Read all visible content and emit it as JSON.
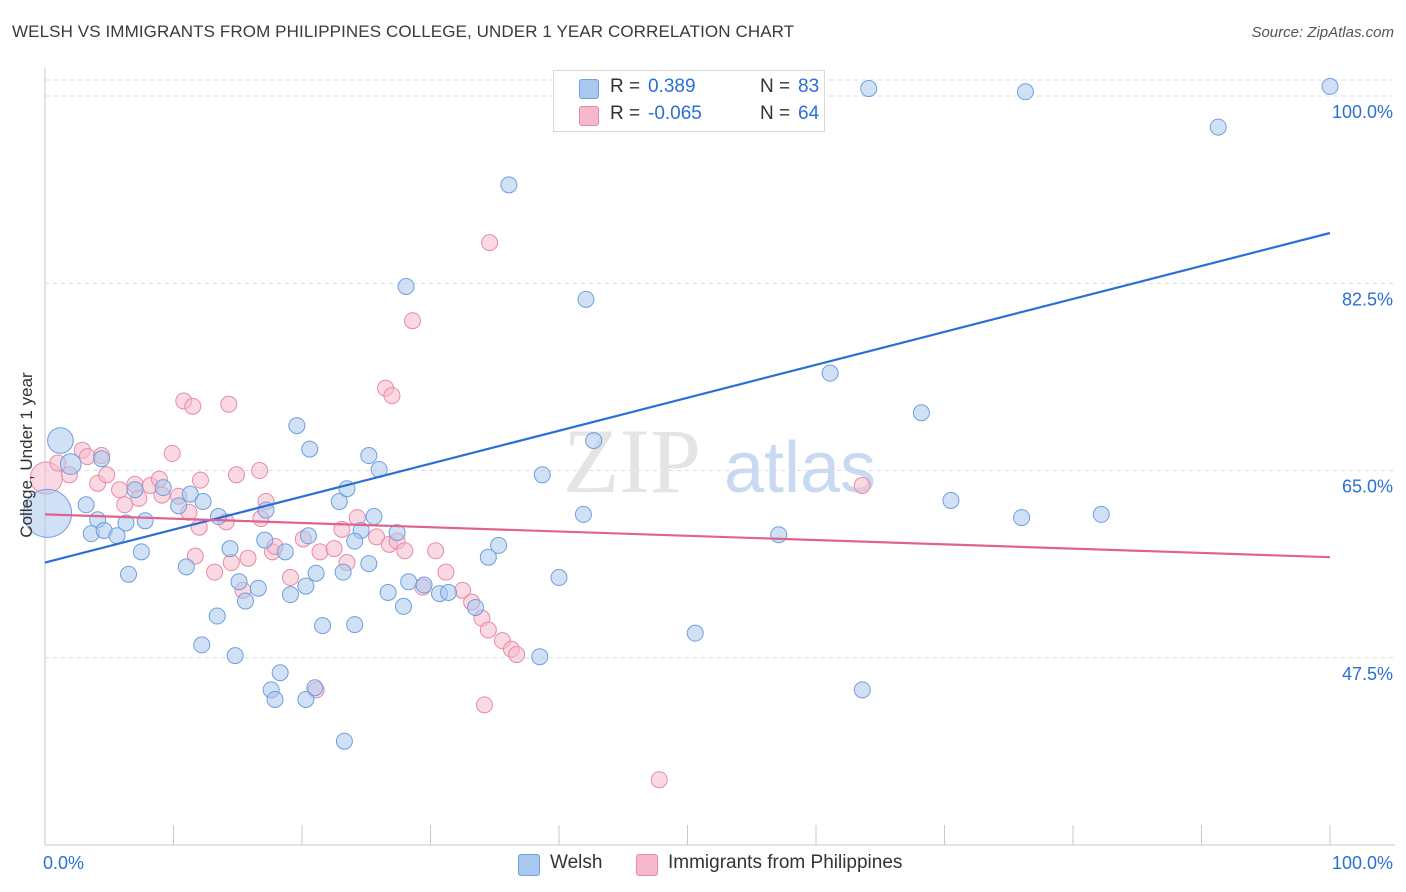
{
  "title": "WELSH VS IMMIGRANTS FROM PHILIPPINES COLLEGE, UNDER 1 YEAR CORRELATION CHART",
  "source": "Source: ZipAtlas.com",
  "watermark": {
    "zip": "ZIP",
    "atlas": "atlas"
  },
  "legend": {
    "rows": [
      {
        "r_label": "R =",
        "r_value": "0.389",
        "n_label": "N =",
        "n_value": "83",
        "color": "#a9c8ef"
      },
      {
        "r_label": "R =",
        "r_value": "-0.065",
        "n_label": "N =",
        "n_value": "64",
        "color": "#f5b9cb"
      }
    ]
  },
  "series_labels": {
    "welsh": "Welsh",
    "philippines": "Immigrants from Philippines"
  },
  "colors": {
    "welsh_fill": "#a9c8ef",
    "welsh_stroke": "#6f9fdc",
    "welsh_line": "#2a6fd6",
    "phil_fill": "#f5b9cb",
    "phil_stroke": "#e98aa7",
    "phil_line": "#e0628f",
    "grid": "#dcdcdc",
    "tick_text": "#2a6fd6"
  },
  "chart_data": {
    "type": "scatter",
    "title": "WELSH VS IMMIGRANTS FROM PHILIPPINES COLLEGE, UNDER 1 YEAR CORRELATION CHART",
    "xlabel": "",
    "ylabel": "College, Under 1 year",
    "xlim": [
      0,
      100
    ],
    "ylim": [
      30,
      101.5
    ],
    "x_tick_labels": [
      "0.0%",
      "100.0%"
    ],
    "y_ticks": [
      47.5,
      65.0,
      82.5,
      100.0
    ],
    "y_tick_labels": [
      "47.5%",
      "65.0%",
      "82.5%",
      "100.0%"
    ],
    "series": [
      {
        "name": "Welsh",
        "r": 0.389,
        "n": 83,
        "trend": {
          "x0": 0,
          "y0": 56.4,
          "x1": 100,
          "y1": 87.2
        },
        "points": [
          [
            0.2,
            61.0,
            3
          ],
          [
            1.2,
            67.8,
            1.6
          ],
          [
            2.0,
            65.6,
            1.3
          ],
          [
            4.4,
            66.1,
            1
          ],
          [
            3.2,
            61.8,
            1
          ],
          [
            4.1,
            60.4,
            1
          ],
          [
            3.6,
            59.1,
            1
          ],
          [
            4.6,
            59.4,
            1
          ],
          [
            5.6,
            58.9,
            1
          ],
          [
            7.0,
            63.2,
            1
          ],
          [
            9.2,
            63.4,
            1
          ],
          [
            6.3,
            60.1,
            1
          ],
          [
            7.8,
            60.3,
            1
          ],
          [
            10.4,
            61.7,
            1
          ],
          [
            11.3,
            62.8,
            1
          ],
          [
            12.3,
            62.1,
            1
          ],
          [
            7.5,
            57.4,
            1
          ],
          [
            11.0,
            56.0,
            1
          ],
          [
            6.5,
            55.3,
            1
          ],
          [
            13.5,
            60.7,
            1
          ],
          [
            14.4,
            57.7,
            1
          ],
          [
            15.1,
            54.6,
            1
          ],
          [
            17.1,
            58.5,
            1
          ],
          [
            18.7,
            57.4,
            1
          ],
          [
            15.6,
            52.8,
            1
          ],
          [
            13.4,
            51.4,
            1
          ],
          [
            12.2,
            48.7,
            1
          ],
          [
            14.8,
            47.7,
            1
          ],
          [
            16.6,
            54.0,
            1
          ],
          [
            19.1,
            53.4,
            1
          ],
          [
            20.3,
            54.2,
            1
          ],
          [
            21.1,
            55.4,
            1
          ],
          [
            23.2,
            55.5,
            1
          ],
          [
            20.5,
            58.9,
            1
          ],
          [
            17.2,
            61.3,
            1
          ],
          [
            20.6,
            67.0,
            1
          ],
          [
            19.6,
            69.2,
            1
          ],
          [
            22.9,
            62.1,
            1
          ],
          [
            23.5,
            63.3,
            1
          ],
          [
            24.6,
            59.4,
            1
          ],
          [
            25.6,
            60.7,
            1
          ],
          [
            26.0,
            65.1,
            1
          ],
          [
            25.2,
            66.4,
            1
          ],
          [
            24.1,
            58.4,
            1
          ],
          [
            25.2,
            56.3,
            1
          ],
          [
            27.4,
            59.2,
            1
          ],
          [
            28.3,
            54.6,
            1
          ],
          [
            30.7,
            53.5,
            1
          ],
          [
            31.4,
            53.6,
            1
          ],
          [
            29.5,
            54.3,
            1
          ],
          [
            26.7,
            53.6,
            1
          ],
          [
            27.9,
            52.3,
            1
          ],
          [
            24.1,
            50.6,
            1
          ],
          [
            21.6,
            50.5,
            1
          ],
          [
            18.3,
            46.1,
            1
          ],
          [
            17.6,
            44.5,
            1
          ],
          [
            17.9,
            43.6,
            1
          ],
          [
            20.3,
            43.6,
            1
          ],
          [
            21.0,
            44.7,
            1
          ],
          [
            23.3,
            39.7,
            1
          ],
          [
            33.5,
            52.2,
            1
          ],
          [
            34.5,
            56.9,
            1
          ],
          [
            35.3,
            58.0,
            1
          ],
          [
            38.7,
            64.6,
            1
          ],
          [
            40.0,
            55.0,
            1
          ],
          [
            42.7,
            67.8,
            1
          ],
          [
            41.9,
            60.9,
            1
          ],
          [
            38.5,
            47.6,
            1
          ],
          [
            50.6,
            49.8,
            1
          ],
          [
            61.1,
            74.1,
            1
          ],
          [
            57.1,
            59.0,
            1
          ],
          [
            63.6,
            44.5,
            1
          ],
          [
            68.2,
            70.4,
            1
          ],
          [
            70.5,
            62.2,
            1
          ],
          [
            76.0,
            60.6,
            1
          ],
          [
            82.2,
            60.9,
            1
          ],
          [
            91.3,
            97.1,
            1
          ],
          [
            76.3,
            100.4,
            1
          ],
          [
            64.1,
            100.7,
            1
          ],
          [
            100.0,
            100.9,
            1
          ],
          [
            36.1,
            91.7,
            1
          ],
          [
            42.1,
            81.0,
            1
          ],
          [
            28.1,
            82.2,
            1
          ]
        ]
      },
      {
        "name": "Immigrants from Philippines",
        "r": -0.065,
        "n": 64,
        "trend": {
          "x0": 0,
          "y0": 60.9,
          "x1": 100,
          "y1": 56.9
        },
        "points": [
          [
            0.1,
            64.3,
            2
          ],
          [
            1.0,
            65.7,
            1
          ],
          [
            1.9,
            64.6,
            1
          ],
          [
            2.9,
            66.9,
            1
          ],
          [
            3.3,
            66.3,
            1
          ],
          [
            4.4,
            66.4,
            1
          ],
          [
            4.1,
            63.8,
            1
          ],
          [
            4.8,
            64.6,
            1
          ],
          [
            5.8,
            63.2,
            1
          ],
          [
            6.2,
            61.8,
            1
          ],
          [
            7.0,
            63.7,
            1
          ],
          [
            7.3,
            62.4,
            1
          ],
          [
            8.2,
            63.6,
            1
          ],
          [
            8.9,
            64.2,
            1
          ],
          [
            9.1,
            62.7,
            1
          ],
          [
            10.4,
            62.6,
            1
          ],
          [
            11.2,
            61.1,
            1
          ],
          [
            11.7,
            57.0,
            1
          ],
          [
            12.0,
            59.7,
            1
          ],
          [
            13.2,
            55.5,
            1
          ],
          [
            14.1,
            60.2,
            1
          ],
          [
            14.5,
            56.4,
            1
          ],
          [
            15.4,
            53.8,
            1
          ],
          [
            15.8,
            56.8,
            1
          ],
          [
            16.8,
            60.5,
            1
          ],
          [
            17.7,
            57.4,
            1
          ],
          [
            19.1,
            55.0,
            1
          ],
          [
            20.1,
            58.6,
            1
          ],
          [
            21.4,
            57.4,
            1
          ],
          [
            22.5,
            57.7,
            1
          ],
          [
            23.5,
            56.4,
            1
          ],
          [
            23.1,
            59.5,
            1
          ],
          [
            24.3,
            60.6,
            1
          ],
          [
            25.8,
            58.8,
            1
          ],
          [
            26.8,
            58.1,
            1
          ],
          [
            27.4,
            58.4,
            1
          ],
          [
            28.0,
            57.5,
            1
          ],
          [
            29.4,
            54.1,
            1
          ],
          [
            30.4,
            57.5,
            1
          ],
          [
            31.2,
            55.5,
            1
          ],
          [
            32.5,
            53.8,
            1
          ],
          [
            33.2,
            52.7,
            1
          ],
          [
            34.0,
            51.2,
            1
          ],
          [
            34.5,
            50.1,
            1
          ],
          [
            35.6,
            49.1,
            1
          ],
          [
            36.3,
            48.3,
            1
          ],
          [
            36.7,
            47.8,
            1
          ],
          [
            26.5,
            72.7,
            1
          ],
          [
            27.0,
            72.0,
            1
          ],
          [
            28.6,
            79.0,
            1
          ],
          [
            34.6,
            86.3,
            1
          ],
          [
            10.8,
            71.5,
            1
          ],
          [
            11.5,
            71.0,
            1
          ],
          [
            14.3,
            71.2,
            1
          ],
          [
            14.9,
            64.6,
            1
          ],
          [
            9.9,
            66.6,
            1
          ],
          [
            12.1,
            64.1,
            1
          ],
          [
            16.7,
            65.0,
            1
          ],
          [
            17.2,
            62.1,
            1
          ],
          [
            17.9,
            57.9,
            1
          ],
          [
            21.1,
            44.5,
            1
          ],
          [
            34.2,
            43.1,
            1
          ],
          [
            47.8,
            36.1,
            1
          ],
          [
            63.6,
            63.6,
            1
          ]
        ]
      }
    ]
  }
}
